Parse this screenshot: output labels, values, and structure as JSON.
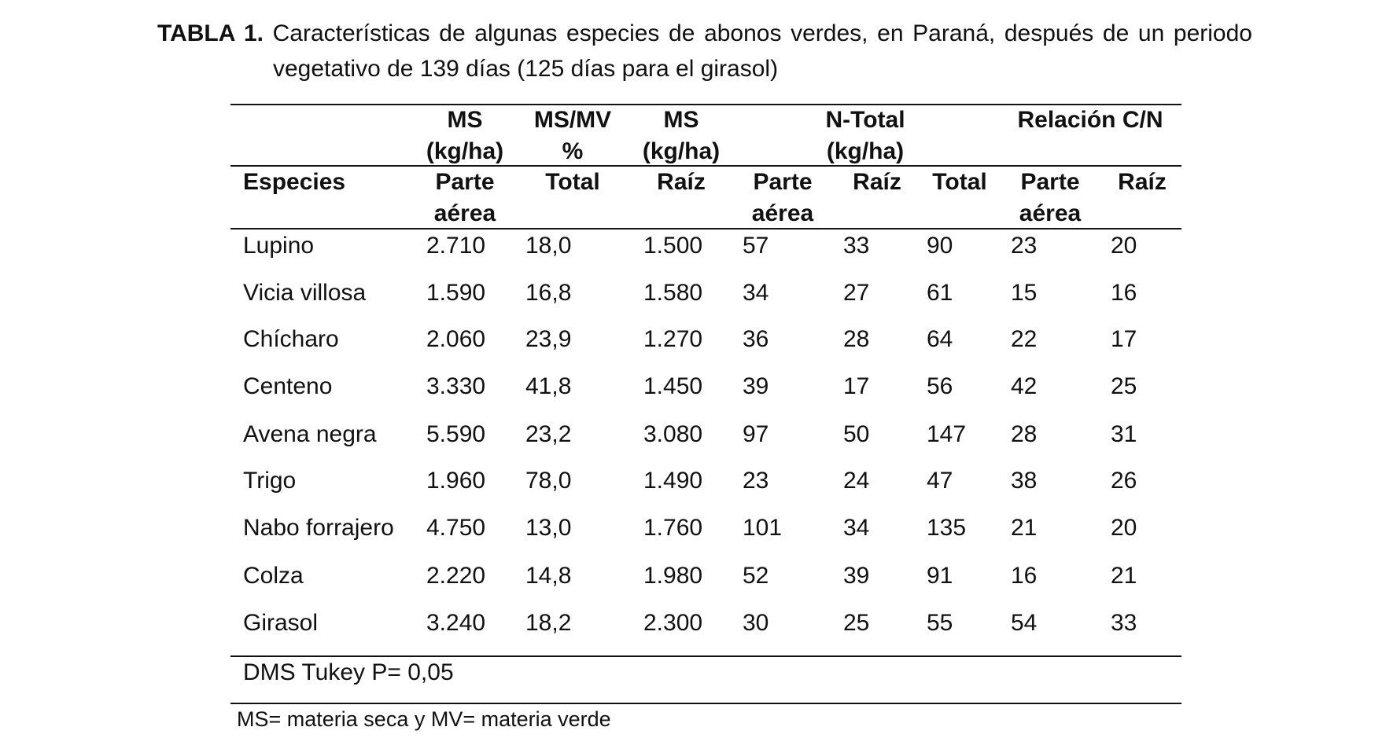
{
  "caption": {
    "tag": "TABLA 1.",
    "line1": "Características de algunas especies de abonos verdes, en Paraná, después de un periodo",
    "line2": "vegetativo de 139 días (125 días para el girasol)"
  },
  "table": {
    "group_headers": {
      "ms_line1": "MS",
      "ms_line2": "(kg/ha)",
      "msmv_line1": "MS/MV",
      "msmv_line2": "%",
      "ms2_line1": "MS",
      "ms2_line2": "(kg/ha)",
      "ntotal_line1": "N-Total",
      "ntotal_line2": "(kg/ha)",
      "cn_line1": "Relación C/N"
    },
    "sub_headers": {
      "especies": "Especies",
      "parte_line1": "Parte",
      "parte_line2": "aérea",
      "total": "Total",
      "raiz": "Raíz",
      "n_parte_line1": "Parte",
      "n_parte_line2": "aérea",
      "n_raiz": "Raíz",
      "n_total": "Total",
      "cn_parte_line1": "Parte",
      "cn_parte_line2": "aérea",
      "cn_raiz": "Raíz"
    },
    "rows": [
      {
        "especie": "Lupino",
        "ms_parte": "2.710",
        "msmv_total": "18,0",
        "ms_raiz": "1.500",
        "n_parte": "57",
        "n_raiz": "33",
        "n_total": "90",
        "cn_parte": "23",
        "cn_raiz": "20"
      },
      {
        "especie": "Vicia villosa",
        "ms_parte": "1.590",
        "msmv_total": "16,8",
        "ms_raiz": "1.580",
        "n_parte": "34",
        "n_raiz": "27",
        "n_total": "61",
        "cn_parte": "15",
        "cn_raiz": "16"
      },
      {
        "especie": "Chícharo",
        "ms_parte": "2.060",
        "msmv_total": "23,9",
        "ms_raiz": "1.270",
        "n_parte": "36",
        "n_raiz": "28",
        "n_total": "64",
        "cn_parte": "22",
        "cn_raiz": "17"
      },
      {
        "especie": "Centeno",
        "ms_parte": "3.330",
        "msmv_total": "41,8",
        "ms_raiz": "1.450",
        "n_parte": "39",
        "n_raiz": "17",
        "n_total": "56",
        "cn_parte": "42",
        "cn_raiz": "25"
      },
      {
        "especie": "Avena negra",
        "ms_parte": "5.590",
        "msmv_total": "23,2",
        "ms_raiz": "3.080",
        "n_parte": "97",
        "n_raiz": "50",
        "n_total": "147",
        "cn_parte": "28",
        "cn_raiz": "31"
      },
      {
        "especie": "Trigo",
        "ms_parte": "1.960",
        "msmv_total": "78,0",
        "ms_raiz": "1.490",
        "n_parte": "23",
        "n_raiz": "24",
        "n_total": "47",
        "cn_parte": "38",
        "cn_raiz": "26"
      },
      {
        "especie": "Nabo forrajero",
        "ms_parte": "4.750",
        "msmv_total": "13,0",
        "ms_raiz": "1.760",
        "n_parte": "101",
        "n_raiz": "34",
        "n_total": "135",
        "cn_parte": "21",
        "cn_raiz": "20"
      },
      {
        "especie": "Colza",
        "ms_parte": "2.220",
        "msmv_total": "14,8",
        "ms_raiz": "1.980",
        "n_parte": "52",
        "n_raiz": "39",
        "n_total": "91",
        "cn_parte": "16",
        "cn_raiz": "21"
      },
      {
        "especie": "Girasol",
        "ms_parte": "3.240",
        "msmv_total": "18,2",
        "ms_raiz": "2.300",
        "n_parte": "30",
        "n_raiz": "25",
        "n_total": "55",
        "cn_parte": "54",
        "cn_raiz": "33"
      }
    ],
    "dms": "DMS Tukey P= 0,05"
  },
  "footnote": "MS= materia seca y MV= materia verde"
}
